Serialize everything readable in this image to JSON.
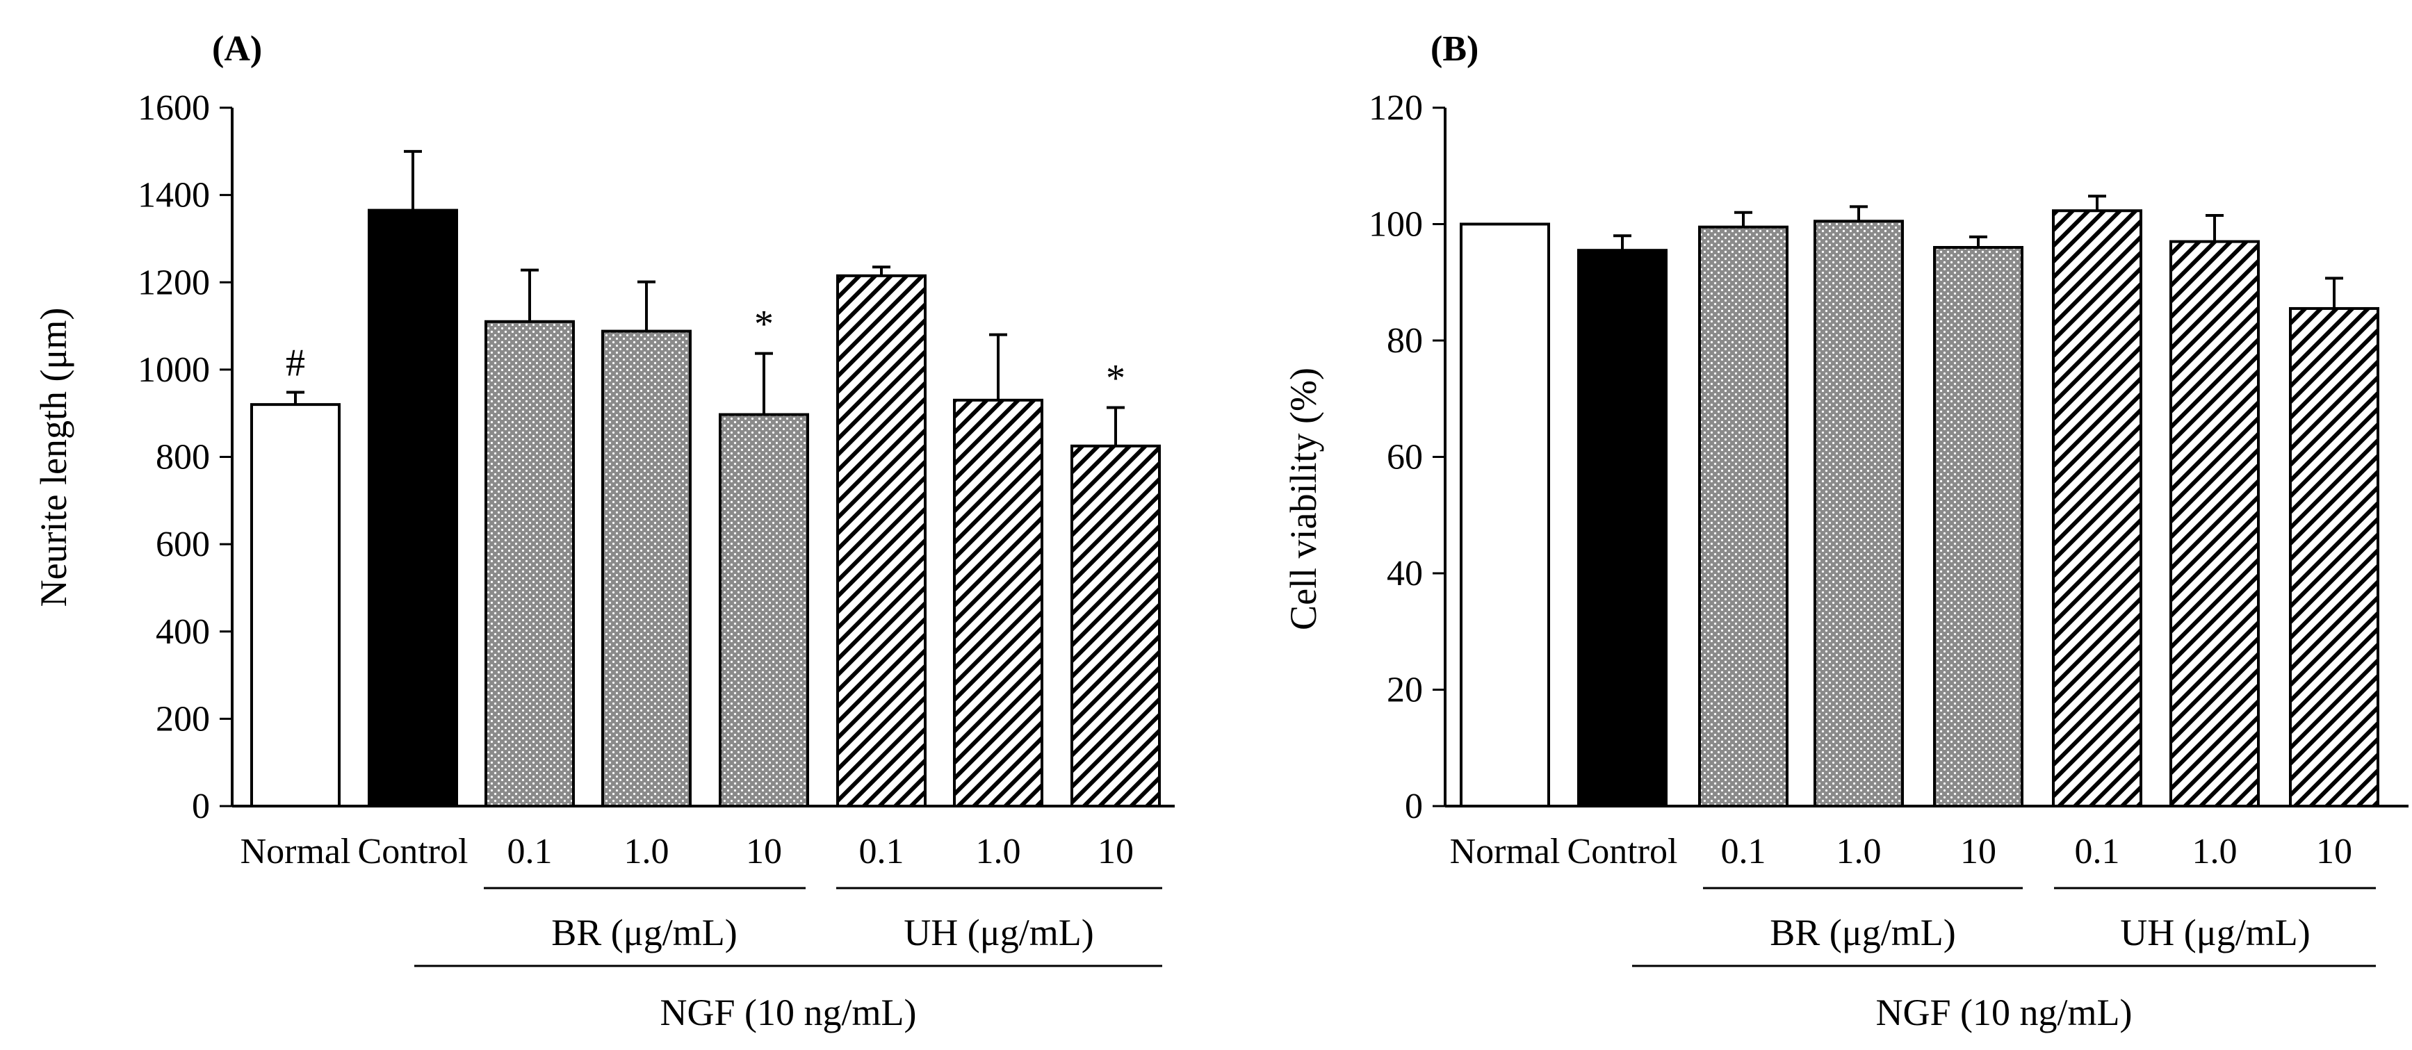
{
  "figure": {
    "panels": [
      "(A)",
      "(B)"
    ]
  },
  "chart_data": [
    {
      "type": "bar",
      "panel_label": "(A)",
      "ylabel": "Neurite length (μm)",
      "ylim": [
        0,
        1600
      ],
      "yticks": [
        "0",
        "200",
        "400",
        "600",
        "800",
        "1000",
        "1200",
        "1400",
        "1600"
      ],
      "categories": [
        "Normal",
        "Control",
        "0.1",
        "1.0",
        "10",
        "0.1",
        "1.0",
        "10"
      ],
      "values": [
        920,
        1365,
        1110,
        1088,
        897,
        1215,
        930,
        825
      ],
      "errors": [
        28,
        135,
        118,
        113,
        140,
        20,
        150,
        88
      ],
      "fills": [
        "white",
        "black",
        "dots",
        "dots",
        "dots",
        "hatch",
        "hatch",
        "hatch"
      ],
      "annotations": [
        {
          "bar": 0,
          "text": "#"
        },
        {
          "bar": 4,
          "text": "*"
        },
        {
          "bar": 7,
          "text": "*"
        }
      ],
      "group_labels": {
        "br": "BR (μg/mL)",
        "uh": "UH (μg/mL)",
        "ngf": "NGF (10 ng/mL)"
      }
    },
    {
      "type": "bar",
      "panel_label": "(B)",
      "ylabel": "Cell viability (%)",
      "ylim": [
        0,
        120
      ],
      "yticks": [
        "0",
        "20",
        "40",
        "60",
        "80",
        "100",
        "120"
      ],
      "categories": [
        "Normal",
        "Control",
        "0.1",
        "1.0",
        "10",
        "0.1",
        "1.0",
        "10"
      ],
      "values": [
        100,
        95.5,
        99.5,
        100.5,
        96,
        102.3,
        97,
        85.5
      ],
      "errors": [
        0,
        2.5,
        2.5,
        2.5,
        1.8,
        2.5,
        4.5,
        5.2
      ],
      "fills": [
        "white",
        "black",
        "dots",
        "dots",
        "dots",
        "hatch",
        "hatch",
        "hatch"
      ],
      "annotations": [],
      "group_labels": {
        "br": "BR (μg/mL)",
        "uh": "UH (μg/mL)",
        "ngf": "NGF (10 ng/mL)"
      }
    }
  ]
}
